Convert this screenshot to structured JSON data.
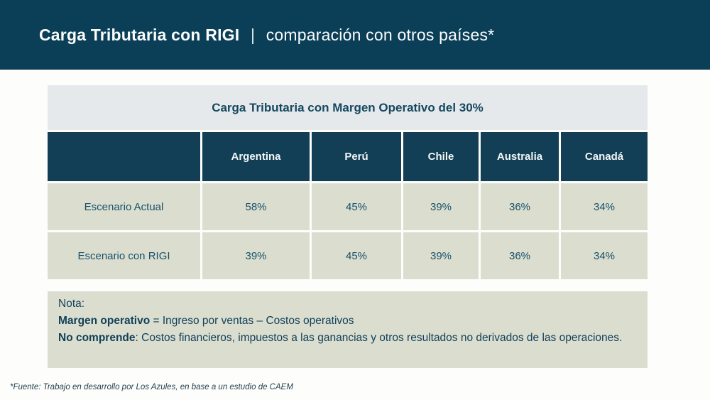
{
  "slide": {
    "title_bold": "Carga Tributaria con RIGI",
    "title_separator": "|",
    "title_regular": "comparación con otros países*",
    "footer": "*Fuente: Trabajo en desarrollo por Los Azules, en base a un estudio de CAEM"
  },
  "table": {
    "title": "Carga Tributaria con Margen Operativo del 30%",
    "columns": [
      "Argentina",
      "Perú",
      "Chile",
      "Australia",
      "Canadá"
    ],
    "rows": [
      {
        "label": "Escenario Actual",
        "values": [
          "58%",
          "45%",
          "39%",
          "36%",
          "34%"
        ]
      },
      {
        "label": "Escenario con RIGI",
        "values": [
          "39%",
          "45%",
          "39%",
          "36%",
          "34%"
        ]
      }
    ]
  },
  "note": {
    "lines": [
      {
        "bold": "",
        "rest": "Nota:"
      },
      {
        "bold": "Margen operativo",
        "rest": " = Ingreso por ventas – Costos operativos"
      },
      {
        "bold": "No comprende",
        "rest": ": Costos financieros, impuestos a las ganancias y otros resultados no derivados de las operaciones."
      }
    ]
  },
  "colors": {
    "header_band": "#0b3f58",
    "table_header_row": "#123f55",
    "table_title_band": "#e6e9ec",
    "row_background": "#dbdecf",
    "text_teal": "#17506a"
  },
  "chart_data": {
    "type": "table",
    "title": "Carga Tributaria con Margen Operativo del 30%",
    "categories": [
      "Argentina",
      "Perú",
      "Chile",
      "Australia",
      "Canadá"
    ],
    "series": [
      {
        "name": "Escenario Actual",
        "values": [
          58,
          45,
          39,
          36,
          34
        ]
      },
      {
        "name": "Escenario con RIGI",
        "values": [
          39,
          45,
          39,
          36,
          34
        ]
      }
    ],
    "unit": "%"
  }
}
